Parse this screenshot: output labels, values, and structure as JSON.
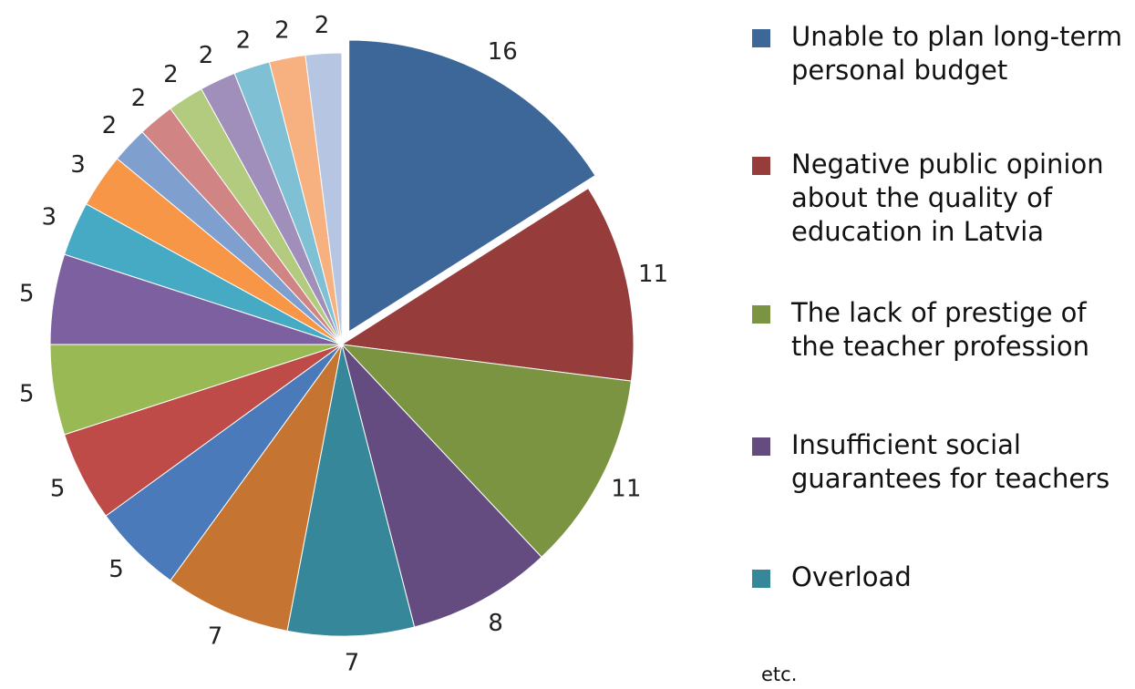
{
  "chart_data": {
    "type": "pie",
    "categories": [
      "Unable to plan long-term personal budget",
      "Negative public opinion about the quality of education in Latvia",
      "The lack of prestige of the teacher profession",
      "Insufficient social guarantees for teachers",
      "Overload",
      null,
      null,
      null,
      null,
      null,
      null,
      null,
      null,
      null,
      null,
      null,
      null,
      null,
      null
    ],
    "values": [
      16,
      11,
      11,
      8,
      7,
      7,
      5,
      5,
      5,
      5,
      3,
      3,
      2,
      2,
      2,
      2,
      2,
      2,
      2
    ],
    "colors": [
      "#3D6699",
      "#963C3B",
      "#7A9442",
      "#644C80",
      "#37879A",
      "#C57531",
      "#4A7AB9",
      "#BE4B48",
      "#98B954",
      "#7D60A0",
      "#46AAC5",
      "#F79646",
      "#7F9FCF",
      "#D08584",
      "#B3CB7E",
      "#A08FBB",
      "#7FC0D4",
      "#F7B07F",
      "#B5C5E2"
    ],
    "exploded": [
      0
    ],
    "legend_note": "etc."
  }
}
